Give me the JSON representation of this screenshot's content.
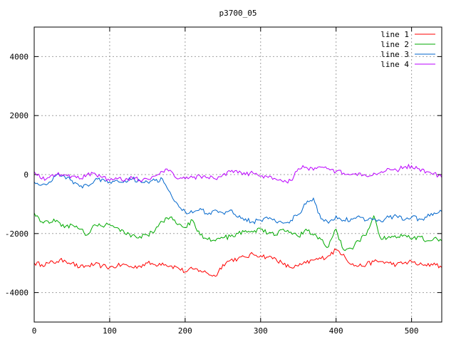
{
  "chart_data": {
    "type": "line",
    "title": "p3700_05",
    "xlabel": "",
    "ylabel": "",
    "xlim": [
      0,
      540
    ],
    "ylim": [
      -5000,
      5000
    ],
    "x_ticks": [
      0,
      100,
      200,
      300,
      400,
      500
    ],
    "y_ticks": [
      -4000,
      -2000,
      0,
      2000,
      4000
    ],
    "grid": true,
    "legend_position": "top-right",
    "series": [
      {
        "name": "line 1",
        "color": "#ff0000",
        "x": [
          0,
          10,
          20,
          30,
          40,
          50,
          60,
          70,
          80,
          90,
          100,
          110,
          120,
          130,
          140,
          150,
          160,
          170,
          180,
          190,
          200,
          210,
          220,
          230,
          240,
          250,
          260,
          270,
          280,
          290,
          300,
          310,
          320,
          330,
          340,
          350,
          360,
          370,
          380,
          390,
          400,
          410,
          420,
          430,
          440,
          450,
          460,
          470,
          480,
          490,
          500,
          510,
          520,
          530,
          540
        ],
        "values": [
          -3000,
          -3050,
          -3000,
          -2950,
          -2900,
          -3000,
          -3150,
          -3100,
          -3050,
          -3100,
          -3150,
          -3100,
          -3050,
          -3150,
          -3100,
          -3000,
          -3050,
          -3000,
          -3100,
          -3150,
          -3300,
          -3200,
          -3250,
          -3350,
          -3450,
          -3050,
          -2900,
          -2850,
          -2800,
          -2700,
          -2750,
          -2800,
          -2850,
          -3050,
          -3150,
          -3100,
          -3000,
          -2900,
          -2850,
          -2750,
          -2550,
          -2700,
          -3050,
          -3100,
          -3050,
          -2950,
          -2950,
          -3000,
          -3050,
          -3000,
          -2950,
          -3050,
          -3100,
          -3000,
          -3150
        ]
      },
      {
        "name": "line 2",
        "color": "#00aa00",
        "x": [
          0,
          10,
          20,
          30,
          40,
          50,
          60,
          70,
          80,
          90,
          100,
          110,
          120,
          130,
          140,
          150,
          160,
          170,
          180,
          190,
          200,
          210,
          220,
          230,
          240,
          250,
          260,
          270,
          280,
          290,
          300,
          310,
          320,
          330,
          340,
          350,
          360,
          370,
          380,
          390,
          400,
          410,
          420,
          430,
          440,
          450,
          460,
          470,
          480,
          490,
          500,
          510,
          520,
          530,
          540
        ],
        "values": [
          -1300,
          -1600,
          -1650,
          -1550,
          -1800,
          -1700,
          -1850,
          -2050,
          -1700,
          -1750,
          -1700,
          -1800,
          -2000,
          -2050,
          -2100,
          -2050,
          -1900,
          -1600,
          -1450,
          -1700,
          -1800,
          -1550,
          -2050,
          -2200,
          -2250,
          -2150,
          -2100,
          -2000,
          -1900,
          -1950,
          -1850,
          -2000,
          -2050,
          -1850,
          -1950,
          -2100,
          -1850,
          -2050,
          -2200,
          -2450,
          -1850,
          -2550,
          -2500,
          -2250,
          -2050,
          -1400,
          -2200,
          -2100,
          -2150,
          -2050,
          -2200,
          -2100,
          -2250,
          -2150,
          -2250
        ]
      },
      {
        "name": "line 3",
        "color": "#0066cc",
        "x": [
          0,
          10,
          20,
          30,
          40,
          50,
          60,
          70,
          80,
          90,
          100,
          110,
          120,
          130,
          140,
          150,
          160,
          170,
          180,
          190,
          200,
          210,
          220,
          230,
          240,
          250,
          260,
          270,
          280,
          290,
          300,
          310,
          320,
          330,
          340,
          350,
          360,
          370,
          380,
          390,
          400,
          410,
          420,
          430,
          440,
          450,
          460,
          470,
          480,
          490,
          500,
          510,
          520,
          530,
          540
        ],
        "values": [
          -250,
          -350,
          -250,
          0,
          -50,
          -200,
          -400,
          -350,
          -200,
          -150,
          -250,
          -200,
          -200,
          -150,
          -200,
          -250,
          -200,
          -150,
          -600,
          -1000,
          -1250,
          -1300,
          -1150,
          -1350,
          -1200,
          -1300,
          -1200,
          -1450,
          -1500,
          -1600,
          -1550,
          -1500,
          -1600,
          -1650,
          -1550,
          -1350,
          -1000,
          -800,
          -1500,
          -1650,
          -1400,
          -1550,
          -1500,
          -1400,
          -1550,
          -1500,
          -1600,
          -1450,
          -1400,
          -1550,
          -1450,
          -1500,
          -1450,
          -1300,
          -1250
        ]
      },
      {
        "name": "line 4",
        "color": "#bb00ff",
        "x": [
          0,
          10,
          20,
          30,
          40,
          50,
          60,
          70,
          80,
          90,
          100,
          110,
          120,
          130,
          140,
          150,
          160,
          170,
          180,
          190,
          200,
          210,
          220,
          230,
          240,
          250,
          260,
          270,
          280,
          290,
          300,
          310,
          320,
          330,
          340,
          350,
          360,
          370,
          380,
          390,
          400,
          410,
          420,
          430,
          440,
          450,
          460,
          470,
          480,
          490,
          500,
          510,
          520,
          530,
          540
        ],
        "values": [
          100,
          -150,
          -100,
          0,
          0,
          -50,
          -150,
          0,
          50,
          -100,
          -200,
          -150,
          -200,
          -100,
          -200,
          -150,
          -50,
          100,
          150,
          -150,
          -150,
          -100,
          -50,
          -100,
          -150,
          0,
          100,
          50,
          0,
          50,
          -50,
          -100,
          -150,
          -250,
          -200,
          200,
          250,
          150,
          250,
          200,
          100,
          50,
          0,
          50,
          -50,
          50,
          100,
          200,
          150,
          250,
          300,
          200,
          100,
          50,
          -100
        ]
      }
    ]
  }
}
